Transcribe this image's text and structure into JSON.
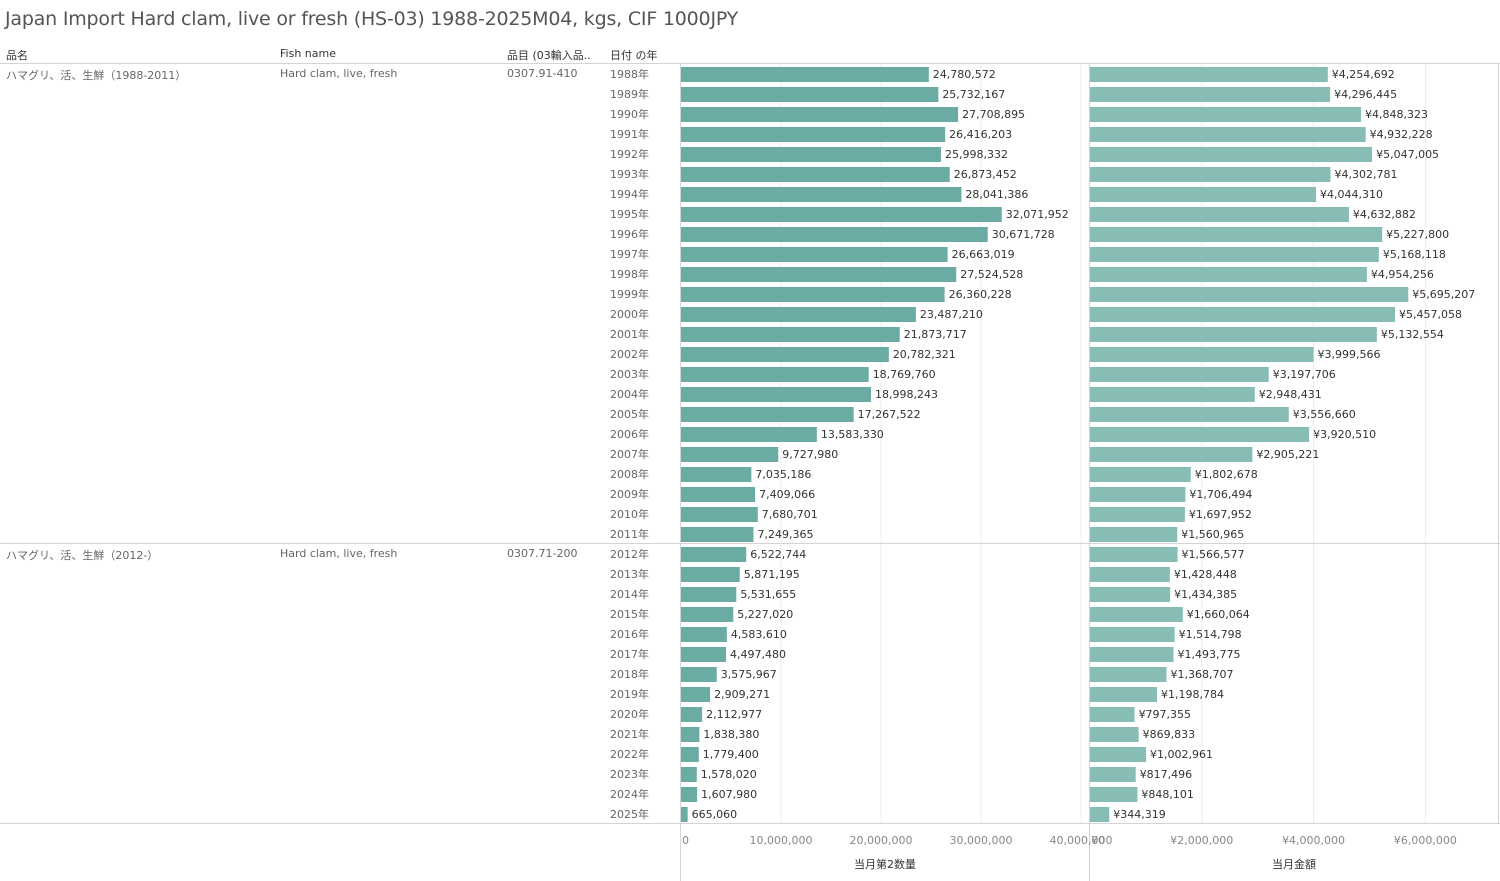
{
  "title": "Japan Import Hard clam, live or fresh (HS-03) 1988-2025M04, kgs, CIF 1000JPY",
  "headers": {
    "item_name": "品名",
    "fish_name": "Fish name",
    "hs_code": "品目 (03輸入品..",
    "year": "日付 の年"
  },
  "groups": [
    {
      "item_name": "ハマグリ、活、生鮮（1988-2011）",
      "fish_name": "Hard clam, live, fresh",
      "hs_code": "0307.91-410",
      "years": [
        "1988年",
        "1989年",
        "1990年",
        "1991年",
        "1992年",
        "1993年",
        "1994年",
        "1995年",
        "1996年",
        "1997年",
        "1998年",
        "1999年",
        "2000年",
        "2001年",
        "2002年",
        "2003年",
        "2004年",
        "2005年",
        "2006年",
        "2007年",
        "2008年",
        "2009年",
        "2010年",
        "2011年"
      ]
    },
    {
      "item_name": "ハマグリ、活、生鮮（2012-）",
      "fish_name": "Hard clam, live, fresh",
      "hs_code": "0307.71-200",
      "years": [
        "2012年",
        "2013年",
        "2014年",
        "2015年",
        "2016年",
        "2017年",
        "2018年",
        "2019年",
        "2020年",
        "2021年",
        "2022年",
        "2023年",
        "2024年",
        "2025年"
      ]
    }
  ],
  "colors": {
    "quantity_bar": "#6aaba3",
    "value_bar": "#88bdb6",
    "grid": "#ececec",
    "divider": "#d4d4d4"
  },
  "chart_data": [
    {
      "type": "bar",
      "orientation": "horizontal",
      "xlabel": "当月第2数量",
      "xlim": [
        0,
        40800000
      ],
      "ticks": [
        0,
        10000000,
        20000000,
        30000000,
        40000000
      ],
      "tick_labels": [
        "0",
        "10,000,000",
        "20,000,000",
        "30,000,000",
        "40,000,000"
      ],
      "categories": [
        "1988年",
        "1989年",
        "1990年",
        "1991年",
        "1992年",
        "1993年",
        "1994年",
        "1995年",
        "1996年",
        "1997年",
        "1998年",
        "1999年",
        "2000年",
        "2001年",
        "2002年",
        "2003年",
        "2004年",
        "2005年",
        "2006年",
        "2007年",
        "2008年",
        "2009年",
        "2010年",
        "2011年",
        "2012年",
        "2013年",
        "2014年",
        "2015年",
        "2016年",
        "2017年",
        "2018年",
        "2019年",
        "2020年",
        "2021年",
        "2022年",
        "2023年",
        "2024年",
        "2025年"
      ],
      "values": [
        24780572,
        25732167,
        27708895,
        26416203,
        25998332,
        26873452,
        28041386,
        32071952,
        30671728,
        26663019,
        27524528,
        26360228,
        23487210,
        21873717,
        20782321,
        18769760,
        18998243,
        17267522,
        13583330,
        9727980,
        7035186,
        7409066,
        7680701,
        7249365,
        6522744,
        5871195,
        5531655,
        5227020,
        4583610,
        4497480,
        3575967,
        2909271,
        2112977,
        1838380,
        1779400,
        1578020,
        1607980,
        665060
      ],
      "labels": [
        "24,780,572",
        "25,732,167",
        "27,708,895",
        "26,416,203",
        "25,998,332",
        "26,873,452",
        "28,041,386",
        "32,071,952",
        "30,671,728",
        "26,663,019",
        "27,524,528",
        "26,360,228",
        "23,487,210",
        "21,873,717",
        "20,782,321",
        "18,769,760",
        "18,998,243",
        "17,267,522",
        "13,583,330",
        "9,727,980",
        "7,035,186",
        "7,409,066",
        "7,680,701",
        "7,249,365",
        "6,522,744",
        "5,871,195",
        "5,531,655",
        "5,227,020",
        "4,583,610",
        "4,497,480",
        "3,575,967",
        "2,909,271",
        "2,112,977",
        "1,838,380",
        "1,779,400",
        "1,578,020",
        "1,607,980",
        "665,060"
      ]
    },
    {
      "type": "bar",
      "orientation": "horizontal",
      "xlabel": "当月金額",
      "xlim": [
        0,
        7300000
      ],
      "ticks": [
        0,
        2000000,
        4000000,
        6000000
      ],
      "tick_labels": [
        "¥0",
        "¥2,000,000",
        "¥4,000,000",
        "¥6,000,000"
      ],
      "categories": [
        "1988年",
        "1989年",
        "1990年",
        "1991年",
        "1992年",
        "1993年",
        "1994年",
        "1995年",
        "1996年",
        "1997年",
        "1998年",
        "1999年",
        "2000年",
        "2001年",
        "2002年",
        "2003年",
        "2004年",
        "2005年",
        "2006年",
        "2007年",
        "2008年",
        "2009年",
        "2010年",
        "2011年",
        "2012年",
        "2013年",
        "2014年",
        "2015年",
        "2016年",
        "2017年",
        "2018年",
        "2019年",
        "2020年",
        "2021年",
        "2022年",
        "2023年",
        "2024年",
        "2025年"
      ],
      "values": [
        4254692,
        4296445,
        4848323,
        4932228,
        5047005,
        4302781,
        4044310,
        4632882,
        5227800,
        5168118,
        4954256,
        5695207,
        5457058,
        5132554,
        3999566,
        3197706,
        2948431,
        3556660,
        3920510,
        2905221,
        1802678,
        1706494,
        1697952,
        1560965,
        1566577,
        1428448,
        1434385,
        1660064,
        1514798,
        1493775,
        1368707,
        1198784,
        797355,
        869833,
        1002961,
        817496,
        848101,
        344319
      ],
      "labels": [
        "¥4,254,692",
        "¥4,296,445",
        "¥4,848,323",
        "¥4,932,228",
        "¥5,047,005",
        "¥4,302,781",
        "¥4,044,310",
        "¥4,632,882",
        "¥5,227,800",
        "¥5,168,118",
        "¥4,954,256",
        "¥5,695,207",
        "¥5,457,058",
        "¥5,132,554",
        "¥3,999,566",
        "¥3,197,706",
        "¥2,948,431",
        "¥3,556,660",
        "¥3,920,510",
        "¥2,905,221",
        "¥1,802,678",
        "¥1,706,494",
        "¥1,697,952",
        "¥1,560,965",
        "¥1,566,577",
        "¥1,428,448",
        "¥1,434,385",
        "¥1,660,064",
        "¥1,514,798",
        "¥1,493,775",
        "¥1,368,707",
        "¥1,198,784",
        "¥797,355",
        "¥869,833",
        "¥1,002,961",
        "¥817,496",
        "¥848,101",
        "¥344,319"
      ]
    }
  ]
}
